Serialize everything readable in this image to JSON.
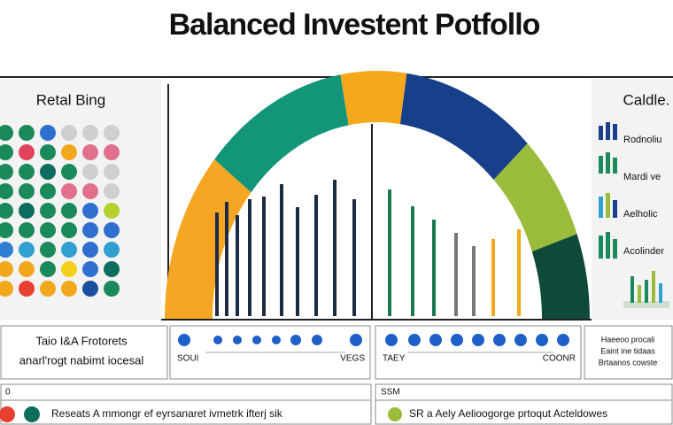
{
  "header": {
    "title": "Balanced Investent Potfollo"
  },
  "left_panel": {
    "title": "Retal Bing",
    "dots": [
      [
        "#1a8a5a",
        "#1a8a5a",
        "#1a8a5a",
        "#1a8a5a",
        "#1a8a5a",
        "#1a8a5a",
        "#2f7fd0",
        "#f2a81c",
        "#f2a81c"
      ],
      [
        "#1a8a5a",
        "#e0445c",
        "#1a8a5a",
        "#1a8a5a",
        "#0d6d5e",
        "#1a8a5a",
        "#2fa0d0",
        "#f2a81c",
        "#e84030"
      ],
      [
        "#2f6fd0",
        "#1a8a5a",
        "#0d6d5e",
        "#1a8a5a",
        "#1a8a5a",
        "#1a8a5a",
        "#1a8a5a",
        "#1a8a5a",
        "#f2a81c"
      ],
      [
        "#cfcfcf",
        "#f2a81c",
        "#1a8a5a",
        "#e0708c",
        "#1a8a5a",
        "#1a8a5a",
        "#2fa0d0",
        "#f2d01c",
        "#f2a81c"
      ],
      [
        "#cfcfcf",
        "#e0708c",
        "#cfcfcf",
        "#e0708c",
        "#2f6fd0",
        "#2f6fd0",
        "#2f6fd0",
        "#2f6fd0",
        "#1a4fa0"
      ],
      [
        "#cfcfcf",
        "#e0708c",
        "#cfcfcf",
        "#cfcfcf",
        "#b8cf30",
        "#2f6fd0",
        "#2fa0d0",
        "#0d6d5e",
        "#1a8a5a"
      ]
    ]
  },
  "gauge_segments": [
    {
      "color": "#f5a623",
      "share": 40
    },
    {
      "color": "#13957a",
      "share": 40
    },
    {
      "color": "#f5a81c",
      "share": 18
    },
    {
      "color": "#173f8a",
      "share": 37
    },
    {
      "color": "#9bbb3a",
      "share": 25
    },
    {
      "color": "#0d4a3a",
      "share": 20
    }
  ],
  "bars": [
    {
      "color": "#1d2a44",
      "value": 117
    },
    {
      "color": "#1d2a44",
      "value": 129
    },
    {
      "color": "#1d2a44",
      "value": 114
    },
    {
      "color": "#1d2a44",
      "value": 132
    },
    {
      "color": "#1d2a44",
      "value": 135
    },
    {
      "color": "#1d2a44",
      "value": 149
    },
    {
      "color": "#1d2a44",
      "value": 123
    },
    {
      "color": "#1d2a44",
      "value": 137
    },
    {
      "color": "#1d2a44",
      "value": 154
    },
    {
      "color": "#1d2a44",
      "value": 132
    },
    {
      "color": "#1a7a4e",
      "value": 143
    },
    {
      "color": "#1a7a4e",
      "value": 124
    },
    {
      "color": "#1a7a4e",
      "value": 109
    },
    {
      "color": "#777777",
      "value": 94
    },
    {
      "color": "#777777",
      "value": 79
    },
    {
      "color": "#f2a81c",
      "value": 87
    },
    {
      "color": "#f2a81c",
      "value": 98
    }
  ],
  "right_panel": {
    "title": "Caldle.",
    "items": [
      "Rodnoliu",
      "Mardi ve",
      "Aelholic",
      "Acolinder"
    ]
  },
  "summary_row": {
    "box1": {
      "line1": "Taio I&A Frotorets",
      "line2": "anarl'rogt nabimt iocesal"
    },
    "box2": {
      "left": "SOUI",
      "right": "VEGS"
    },
    "box3": {
      "left": "TAEY",
      "right": "COONR"
    },
    "box4": {
      "line1": "Haeeoo procali",
      "line2": "Eaint ine tidaas",
      "line3": "Brtaanos cowste"
    }
  },
  "footer": {
    "left_tag": "0",
    "left_text": "Reseats A mmongr ef eyrsanaret ivmetrk ifterj sik",
    "right_tag": "SSM",
    "right_text": "SR a Aely Aelioogorge prtoqut Acteldowes"
  }
}
